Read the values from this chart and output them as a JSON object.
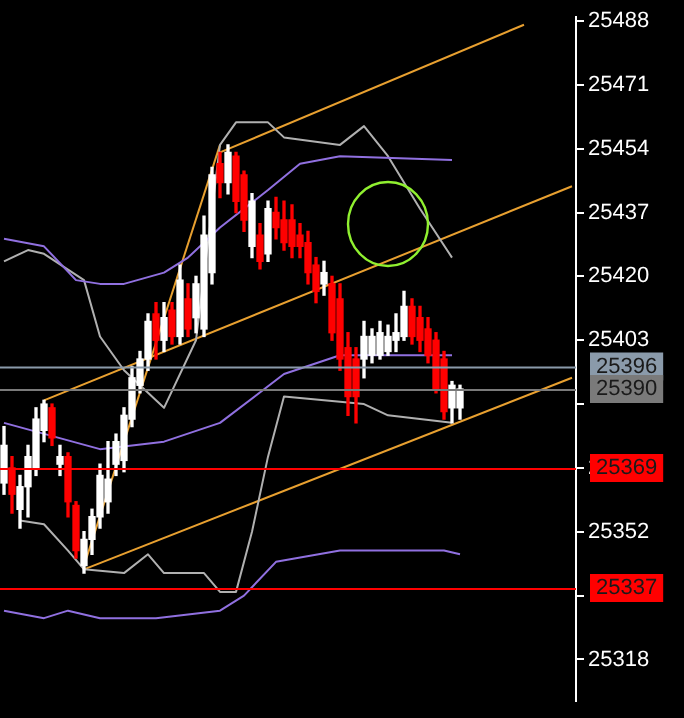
{
  "chart_data": {
    "type": "candlestick",
    "categories": [
      null,
      null,
      null,
      null,
      null,
      null,
      null,
      null,
      null,
      null,
      null,
      null,
      null,
      null,
      null,
      null,
      null,
      null,
      null,
      null,
      null,
      null,
      null,
      null,
      null,
      null,
      null,
      null,
      null,
      null,
      null,
      null,
      null,
      null,
      null,
      null,
      null,
      null,
      null,
      null,
      null,
      null,
      null,
      null,
      null,
      null,
      null,
      null,
      null,
      null,
      null,
      null,
      null,
      null,
      null,
      null,
      null,
      null,
      null,
      null,
      null,
      null,
      null,
      null,
      null,
      null,
      null,
      null,
      null,
      null,
      null,
      null
    ],
    "ohlc": [
      [
        25365,
        25380,
        25362,
        25375
      ],
      [
        25369,
        25372,
        25357,
        25362
      ],
      [
        25358,
        25367,
        25353,
        25364
      ],
      [
        25364,
        25375,
        25356,
        25372
      ],
      [
        25369,
        25385,
        25367,
        25382
      ],
      [
        25379,
        25387,
        25376,
        25386
      ],
      [
        25385,
        25386,
        25375,
        25377
      ],
      [
        25370,
        25375,
        25367,
        25372
      ],
      [
        25372,
        25373,
        25356,
        25360
      ],
      [
        25359,
        25360,
        25345,
        25347
      ],
      [
        25343,
        25352,
        25341,
        25350
      ],
      [
        25350,
        25358,
        25346,
        25356
      ],
      [
        25356,
        25370,
        25353,
        25367
      ],
      [
        25360,
        25376,
        25357,
        25366
      ],
      [
        25370,
        25378,
        25367,
        25376
      ],
      [
        25371,
        25385,
        25368,
        25383
      ],
      [
        25382,
        25396,
        25380,
        25393
      ],
      [
        25391,
        25400,
        25389,
        25398
      ],
      [
        25398,
        25410,
        25395,
        25408
      ],
      [
        25410,
        25413,
        25398,
        25403
      ],
      [
        25403,
        25413,
        25400,
        25409
      ],
      [
        25411,
        25413,
        25402,
        25404
      ],
      [
        25404,
        25423,
        25402,
        25419
      ],
      [
        25414,
        25418,
        25404,
        25406
      ],
      [
        25409,
        25420,
        25405,
        25418
      ],
      [
        25406,
        25436,
        25404,
        25431
      ],
      [
        25421,
        25449,
        25418,
        25447
      ],
      [
        25450,
        25453,
        25441,
        25445
      ],
      [
        25445,
        25455,
        25442,
        25453
      ],
      [
        25452,
        25453,
        25437,
        25440
      ],
      [
        25447,
        25448,
        25432,
        25435
      ],
      [
        25428,
        25442,
        25425,
        25440
      ],
      [
        25431,
        25434,
        25422,
        25424
      ],
      [
        25426,
        25440,
        25424,
        25438
      ],
      [
        25437,
        25441,
        25430,
        25433
      ],
      [
        25435,
        25440,
        25427,
        25429
      ],
      [
        25435,
        25439,
        25425,
        25428
      ],
      [
        25431,
        25434,
        25425,
        25428
      ],
      [
        25429,
        25432,
        25418,
        25421
      ],
      [
        25423,
        25425,
        25413,
        25416
      ],
      [
        25418,
        25424,
        25415,
        25421
      ],
      [
        25418,
        25420,
        25403,
        25405
      ],
      [
        25414,
        25418,
        25395,
        25398
      ],
      [
        25401,
        25405,
        25383,
        25388
      ],
      [
        25398,
        25401,
        25381,
        25388
      ],
      [
        25398,
        25408,
        25393,
        25404
      ],
      [
        25399,
        25406,
        25397,
        25404
      ],
      [
        25399,
        25408,
        25398,
        25405
      ],
      [
        25400,
        25407,
        25399,
        25404
      ],
      [
        25403,
        25410,
        25400,
        25405
      ],
      [
        25404,
        25416,
        25403,
        25412
      ],
      [
        25412,
        25414,
        25402,
        25404
      ],
      [
        25409,
        25412,
        25400,
        25403
      ],
      [
        25406,
        25409,
        25397,
        25399
      ],
      [
        25403,
        25405,
        25389,
        25390
      ],
      [
        25398,
        25400,
        25382,
        25384
      ],
      [
        25385,
        25392,
        25381,
        25391
      ],
      [
        25385,
        25391,
        25382,
        25390
      ],
      null,
      null,
      null,
      null,
      null,
      null,
      null,
      null,
      null,
      null,
      null,
      null,
      null,
      null
    ],
    "colors": [
      "#ffffff",
      "#ff0000",
      "#ffffff",
      "#ffffff",
      "#ffffff",
      "#ffffff",
      "#ff0000",
      "#ffffff",
      "#ff0000",
      "#ff0000",
      "#ffffff",
      "#ffffff",
      "#ffffff",
      "#ffffff",
      "#ffffff",
      "#ffffff",
      "#ffffff",
      "#ffffff",
      "#ffffff",
      "#ff0000",
      "#ffffff",
      "#ff0000",
      "#ffffff",
      "#ff0000",
      "#ffffff",
      "#ffffff",
      "#ffffff",
      "#ff0000",
      "#ffffff",
      "#ff0000",
      "#ff0000",
      "#ffffff",
      "#ff0000",
      "#ffffff",
      "#ff0000",
      "#ff0000",
      "#ff0000",
      "#ff0000",
      "#ff0000",
      "#ff0000",
      "#ffffff",
      "#ff0000",
      "#ff0000",
      "#ff0000",
      "#ff0000",
      "#ffffff",
      "#ffffff",
      "#ffffff",
      "#ffffff",
      "#ffffff",
      "#ffffff",
      "#ff0000",
      "#ff0000",
      "#ff0000",
      "#ff0000",
      "#ff0000",
      "#ffffff",
      "#ffffff",
      null,
      null,
      null,
      null,
      null,
      null,
      null,
      null,
      null,
      null,
      null,
      null,
      null,
      null
    ],
    "series": [
      {
        "type": "line",
        "color": "#9070e0",
        "values": [
          25430,
          null,
          null,
          null,
          null,
          25428,
          null,
          null,
          null,
          25419,
          null,
          null,
          25418,
          null,
          null,
          25418,
          null,
          null,
          null,
          null,
          25421,
          null,
          null,
          25425,
          null,
          null,
          null,
          25433,
          null,
          null,
          null,
          null,
          null,
          25443,
          null,
          null,
          null,
          25450,
          null,
          null,
          null,
          null,
          25452,
          null,
          null,
          null,
          null,
          null,
          null,
          null,
          null,
          null,
          null,
          null,
          null,
          null,
          25451,
          null,
          null,
          null,
          null,
          null,
          null,
          null,
          null,
          null,
          null,
          null,
          null,
          null,
          null,
          null
        ]
      },
      {
        "type": "line",
        "color": "#9070e0",
        "values": [
          25381,
          null,
          null,
          null,
          null,
          null,
          null,
          null,
          null,
          null,
          null,
          null,
          25374,
          null,
          null,
          null,
          null,
          null,
          null,
          null,
          25376,
          null,
          null,
          null,
          null,
          null,
          null,
          25381,
          null,
          null,
          null,
          null,
          null,
          null,
          null,
          25394,
          null,
          null,
          null,
          null,
          null,
          null,
          25399,
          null,
          null,
          null,
          null,
          null,
          null,
          null,
          null,
          null,
          null,
          null,
          null,
          null,
          25399,
          null,
          null,
          null,
          null,
          null,
          null,
          null,
          null,
          null,
          null,
          null,
          null,
          null,
          null,
          null
        ]
      },
      {
        "type": "line",
        "color": "#9070e0",
        "values": [
          25331,
          null,
          null,
          null,
          null,
          25329,
          null,
          null,
          25331,
          null,
          null,
          null,
          25329,
          null,
          null,
          null,
          null,
          null,
          null,
          25329,
          null,
          null,
          null,
          null,
          null,
          null,
          null,
          25331,
          null,
          null,
          25335,
          null,
          null,
          null,
          25344,
          null,
          null,
          null,
          null,
          null,
          null,
          null,
          25347,
          null,
          null,
          null,
          null,
          null,
          null,
          null,
          null,
          null,
          null,
          null,
          null,
          25347,
          null,
          25346,
          null,
          null,
          null,
          null,
          null,
          null,
          null,
          null,
          null,
          null,
          null,
          null,
          null,
          null
        ]
      },
      {
        "type": "line",
        "color": "#b0b0b0",
        "values": [
          25424,
          null,
          null,
          25427,
          null,
          25426,
          null,
          null,
          null,
          null,
          25419,
          null,
          25404,
          null,
          null,
          25395,
          null,
          null,
          null,
          null,
          25385,
          null,
          null,
          null,
          25403,
          null,
          null,
          25455,
          null,
          25461,
          null,
          null,
          null,
          25461,
          null,
          25457,
          null,
          null,
          null,
          null,
          null,
          null,
          25455,
          null,
          null,
          25460,
          null,
          null,
          25452,
          null,
          null,
          null,
          25438,
          null,
          null,
          null,
          25425,
          null,
          null,
          null,
          null,
          null,
          null,
          null,
          null,
          null,
          null,
          null,
          null,
          null,
          null,
          null
        ]
      },
      {
        "type": "line",
        "color": "#b0b0b0",
        "values": [
          null,
          null,
          25355,
          null,
          null,
          25354,
          null,
          null,
          25347,
          null,
          25342,
          null,
          null,
          null,
          null,
          25341,
          null,
          null,
          25346,
          null,
          25341,
          null,
          null,
          null,
          null,
          25341,
          null,
          25336,
          null,
          25336,
          null,
          25352,
          null,
          25372,
          null,
          25388,
          null,
          null,
          null,
          null,
          null,
          null,
          null,
          null,
          null,
          25386,
          null,
          null,
          25383,
          null,
          null,
          null,
          null,
          null,
          null,
          null,
          25381,
          null,
          null,
          null,
          null,
          null,
          null,
          null,
          null,
          null,
          null,
          null,
          null,
          null,
          null,
          null
        ]
      },
      {
        "type": "line",
        "color": "#e8a030",
        "values": [
          null,
          null,
          null,
          null,
          null,
          null,
          null,
          null,
          null,
          null,
          25342,
          null,
          null,
          null,
          null,
          null,
          null,
          null,
          null,
          null,
          null,
          null,
          null,
          null,
          null,
          null,
          null,
          null,
          null,
          null,
          null,
          null,
          null,
          null,
          null,
          null,
          null,
          null,
          null,
          null,
          null,
          null,
          null,
          null,
          null,
          null,
          null,
          null,
          null,
          null,
          null,
          null,
          null,
          null,
          null,
          null,
          null,
          null,
          null,
          null,
          null,
          null,
          null,
          null,
          null,
          null,
          null,
          null,
          null,
          null,
          null,
          25393
        ]
      },
      {
        "type": "line",
        "color": "#e8a030",
        "values": [
          null,
          null,
          null,
          null,
          null,
          null,
          null,
          null,
          null,
          null,
          25343,
          null,
          null,
          null,
          null,
          null,
          null,
          null,
          null,
          null,
          null,
          null,
          null,
          null,
          null,
          null,
          null,
          25455,
          null,
          null,
          null,
          null,
          null,
          null,
          null,
          null,
          null,
          null,
          null,
          null,
          null,
          null,
          null,
          null,
          null,
          null,
          null,
          null,
          null,
          null,
          null,
          null,
          null,
          null,
          null,
          null,
          null,
          null,
          null,
          null,
          null,
          null,
          null,
          null,
          null,
          null,
          null,
          null,
          null,
          null,
          null,
          null
        ]
      },
      {
        "type": "line",
        "color": "#e8a030",
        "values": [
          null,
          null,
          null,
          null,
          null,
          null,
          null,
          null,
          null,
          null,
          null,
          null,
          null,
          null,
          null,
          null,
          null,
          null,
          null,
          null,
          null,
          null,
          null,
          null,
          null,
          null,
          null,
          25453,
          null,
          null,
          null,
          null,
          null,
          null,
          null,
          null,
          null,
          null,
          null,
          null,
          null,
          null,
          null,
          null,
          null,
          null,
          null,
          null,
          null,
          null,
          null,
          null,
          null,
          null,
          null,
          null,
          null,
          null,
          null,
          null,
          null,
          null,
          null,
          null,
          null,
          25487,
          null,
          null,
          null,
          null,
          null,
          null
        ]
      },
      {
        "type": "line",
        "color": "#e8a030",
        "values": [
          null,
          null,
          null,
          null,
          null,
          25387,
          null,
          null,
          null,
          null,
          null,
          null,
          null,
          null,
          null,
          null,
          null,
          null,
          null,
          null,
          null,
          null,
          null,
          null,
          null,
          null,
          null,
          null,
          null,
          null,
          null,
          null,
          null,
          null,
          null,
          null,
          null,
          null,
          null,
          null,
          null,
          null,
          null,
          null,
          null,
          null,
          null,
          null,
          null,
          null,
          null,
          null,
          null,
          null,
          null,
          null,
          null,
          null,
          null,
          null,
          null,
          null,
          null,
          null,
          null,
          null,
          null,
          null,
          null,
          null,
          null,
          25444
        ]
      }
    ],
    "ylim": [
      25307,
      25489
    ],
    "yticks": [
      25488,
      25471,
      25454,
      25437,
      25420,
      25403,
      {
        "value": 25386,
        "label": null
      },
      25369,
      25352,
      {
        "value": 25335,
        "label": null
      },
      25318
    ],
    "ref_lines": [
      {
        "axis": "y",
        "value": 25396,
        "label": "25396",
        "color": "#8a9aaa"
      },
      {
        "axis": "y",
        "value": 25390,
        "label": "25390",
        "color": "#7a7a7a"
      },
      {
        "axis": "y",
        "value": 25369,
        "label": "25369",
        "color": "#ff0000"
      },
      {
        "axis": "y",
        "value": 25337,
        "label": "25337",
        "color": "#ff0000"
      }
    ],
    "tick_labels": "y",
    "grid": false,
    "legend": false,
    "marker": "none",
    "line_style": "solid"
  }
}
